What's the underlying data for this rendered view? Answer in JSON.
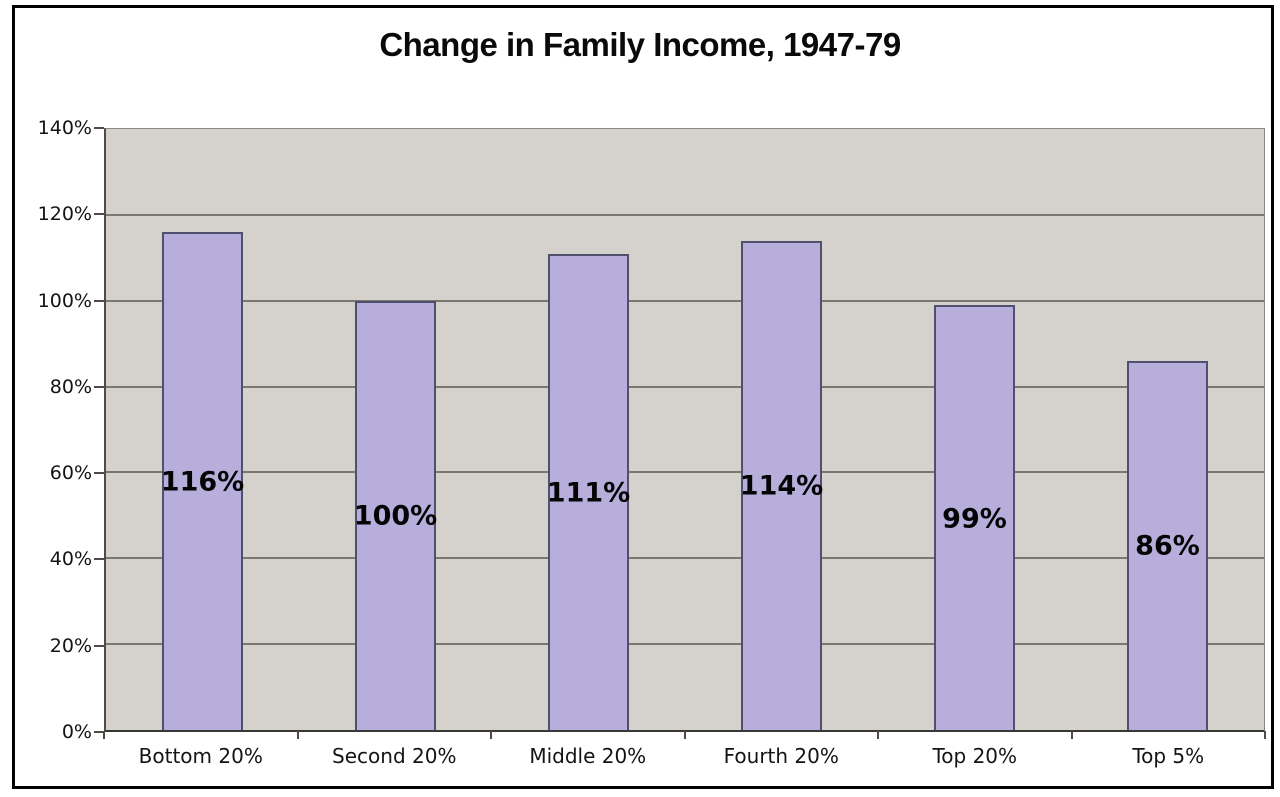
{
  "chart_data": {
    "type": "bar",
    "title": "Change in Family Income, 1947-79",
    "categories": [
      "Bottom 20%",
      "Second 20%",
      "Middle 20%",
      "Fourth 20%",
      "Top 20%",
      "Top 5%"
    ],
    "values": [
      116,
      100,
      111,
      114,
      99,
      86
    ],
    "bar_labels": [
      "116%",
      "100%",
      "111%",
      "114%",
      "99%",
      "86%"
    ],
    "xlabel": "",
    "ylabel": "",
    "ylim": [
      0,
      140
    ],
    "yticks": [
      {
        "value": 0,
        "label": "0%"
      },
      {
        "value": 20,
        "label": "20%"
      },
      {
        "value": 40,
        "label": "40%"
      },
      {
        "value": 60,
        "label": "60%"
      },
      {
        "value": 80,
        "label": "80%"
      },
      {
        "value": 100,
        "label": "100%"
      },
      {
        "value": 120,
        "label": "120%"
      },
      {
        "value": 140,
        "label": "140%"
      }
    ],
    "grid": true,
    "legend": false,
    "value_label_position": "center-of-bar",
    "colors": {
      "page_bg": "#ffffff",
      "frame_border": "#000000",
      "plot_bg": "#d5d2cd",
      "gridline": "#7a776f",
      "bar_fill": "#b7aedb",
      "bar_border": "#4f4f6e"
    }
  }
}
